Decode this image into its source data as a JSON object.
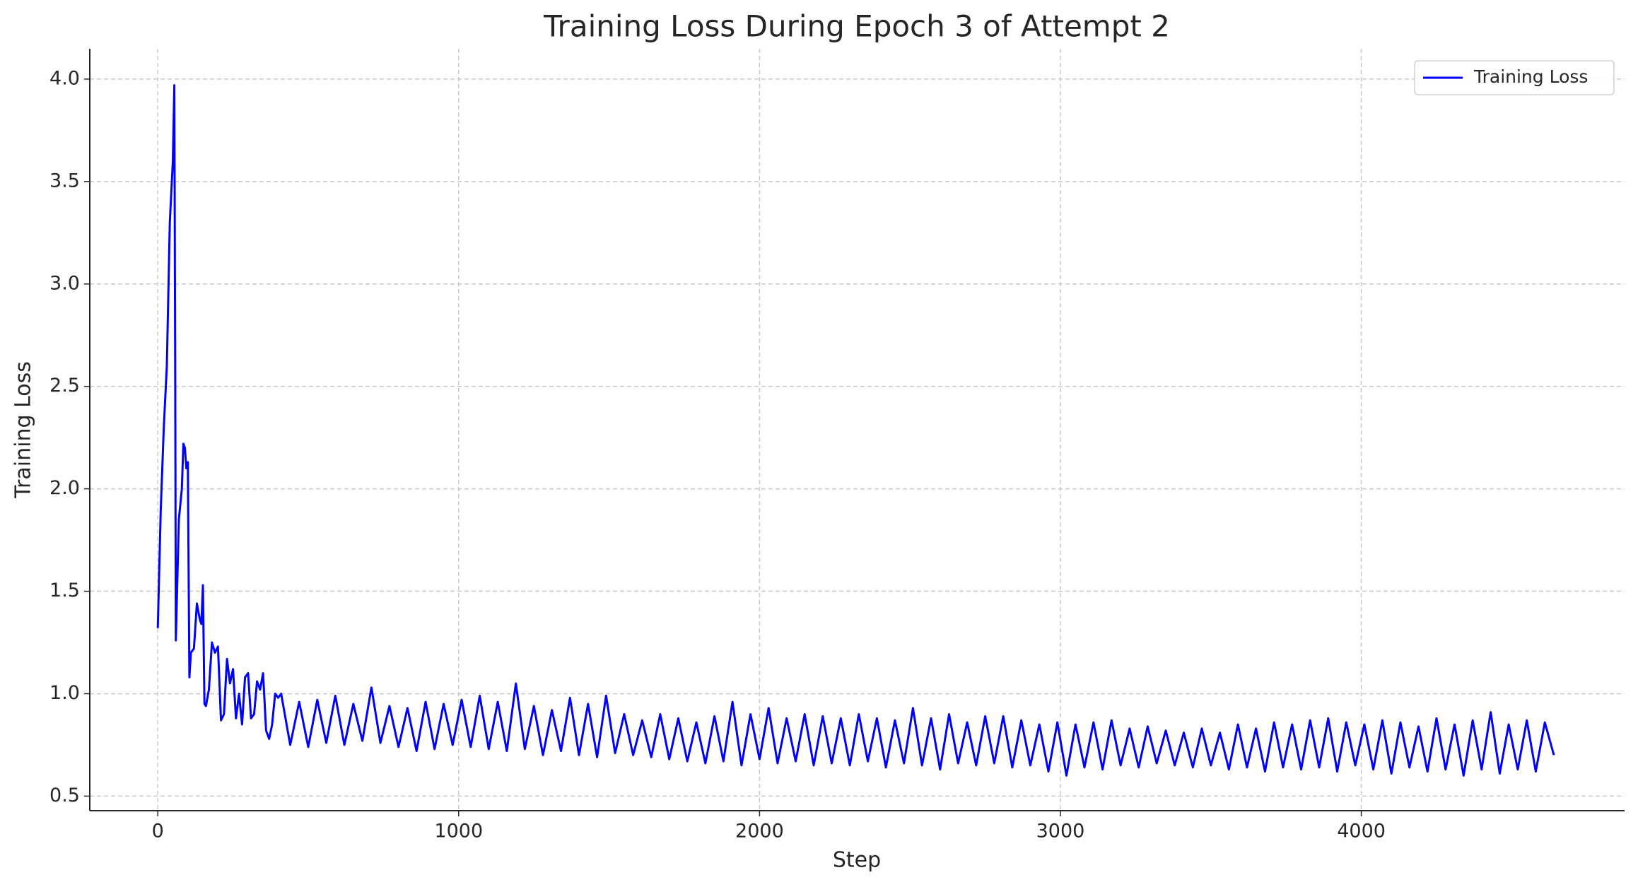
{
  "chart_data": {
    "type": "line",
    "title": "Training Loss During Epoch 3 of Attempt 2",
    "xlabel": "Step",
    "ylabel": "Training Loss",
    "legend": "upper right",
    "grid": true,
    "xlim": [
      -226,
      4875
    ],
    "ylim": [
      0.429,
      4.148
    ],
    "xticks": [
      0,
      1000,
      2000,
      3000,
      4000
    ],
    "yticks": [
      0.5,
      {
        "value": 1,
        "label": "1.0"
      },
      1.5,
      {
        "value": 2,
        "label": "2.0"
      },
      2.5,
      {
        "value": 3,
        "label": "3.0"
      },
      3.5,
      {
        "value": 4,
        "label": "4.0"
      }
    ],
    "x": [
      0,
      10,
      20,
      30,
      40,
      50,
      55,
      58,
      60,
      70,
      80,
      85,
      90,
      95,
      100,
      105,
      110,
      120,
      130,
      140,
      145,
      150,
      155,
      160,
      170,
      180,
      190,
      200,
      210,
      220,
      230,
      240,
      250,
      260,
      270,
      280,
      290,
      300,
      310,
      320,
      330,
      340,
      350,
      360,
      370,
      380,
      390,
      400,
      410,
      440,
      470,
      500,
      530,
      560,
      590,
      620,
      650,
      680,
      710,
      740,
      770,
      800,
      830,
      860,
      890,
      920,
      950,
      980,
      1010,
      1040,
      1070,
      1100,
      1130,
      1160,
      1190,
      1220,
      1250,
      1280,
      1310,
      1340,
      1370,
      1400,
      1430,
      1460,
      1490,
      1520,
      1550,
      1580,
      1610,
      1640,
      1670,
      1700,
      1730,
      1760,
      1790,
      1820,
      1850,
      1880,
      1910,
      1940,
      1970,
      2000,
      2030,
      2060,
      2090,
      2120,
      2150,
      2180,
      2210,
      2240,
      2270,
      2300,
      2330,
      2360,
      2390,
      2420,
      2450,
      2480,
      2510,
      2540,
      2570,
      2600,
      2630,
      2660,
      2690,
      2720,
      2750,
      2780,
      2810,
      2840,
      2870,
      2900,
      2930,
      2960,
      2990,
      3020,
      3050,
      3080,
      3110,
      3140,
      3170,
      3200,
      3230,
      3260,
      3290,
      3320,
      3350,
      3380,
      3410,
      3440,
      3470,
      3500,
      3530,
      3560,
      3590,
      3620,
      3650,
      3680,
      3710,
      3740,
      3770,
      3800,
      3830,
      3860,
      3890,
      3920,
      3950,
      3980,
      4010,
      4040,
      4070,
      4100,
      4130,
      4160,
      4190,
      4220,
      4250,
      4280,
      4310,
      4340,
      4370,
      4400,
      4430,
      4460,
      4490,
      4520,
      4550,
      4580,
      4610,
      4640
    ],
    "series": [
      {
        "name": "Training Loss",
        "color": "#0000ff",
        "values": [
          1.32,
          1.9,
          2.3,
          2.6,
          3.3,
          3.6,
          3.97,
          2.5,
          1.26,
          1.85,
          2.0,
          2.22,
          2.2,
          2.1,
          2.13,
          1.08,
          1.2,
          1.22,
          1.44,
          1.36,
          1.34,
          1.53,
          0.95,
          0.94,
          1.02,
          1.25,
          1.2,
          1.23,
          0.87,
          0.9,
          1.17,
          1.05,
          1.12,
          0.88,
          1.0,
          0.85,
          1.08,
          1.1,
          0.88,
          0.9,
          1.06,
          1.02,
          1.1,
          0.82,
          0.78,
          0.85,
          1.0,
          0.98,
          1.0,
          0.75,
          0.96,
          0.74,
          0.97,
          0.76,
          0.99,
          0.75,
          0.95,
          0.77,
          1.03,
          0.76,
          0.94,
          0.74,
          0.93,
          0.72,
          0.96,
          0.73,
          0.95,
          0.75,
          0.97,
          0.74,
          0.99,
          0.73,
          0.96,
          0.72,
          1.05,
          0.73,
          0.94,
          0.7,
          0.92,
          0.72,
          0.98,
          0.7,
          0.95,
          0.69,
          0.99,
          0.71,
          0.9,
          0.7,
          0.87,
          0.69,
          0.9,
          0.68,
          0.88,
          0.67,
          0.86,
          0.66,
          0.89,
          0.67,
          0.96,
          0.65,
          0.9,
          0.68,
          0.93,
          0.66,
          0.88,
          0.67,
          0.9,
          0.65,
          0.89,
          0.66,
          0.88,
          0.65,
          0.9,
          0.67,
          0.88,
          0.64,
          0.87,
          0.66,
          0.93,
          0.65,
          0.88,
          0.63,
          0.9,
          0.66,
          0.86,
          0.65,
          0.89,
          0.66,
          0.89,
          0.64,
          0.87,
          0.65,
          0.85,
          0.62,
          0.86,
          0.6,
          0.85,
          0.64,
          0.86,
          0.63,
          0.87,
          0.65,
          0.83,
          0.64,
          0.84,
          0.66,
          0.82,
          0.65,
          0.81,
          0.64,
          0.83,
          0.65,
          0.81,
          0.63,
          0.85,
          0.64,
          0.83,
          0.62,
          0.86,
          0.64,
          0.85,
          0.63,
          0.87,
          0.64,
          0.88,
          0.62,
          0.86,
          0.65,
          0.85,
          0.63,
          0.87,
          0.61,
          0.86,
          0.64,
          0.84,
          0.62,
          0.88,
          0.63,
          0.85,
          0.6,
          0.87,
          0.63,
          0.91,
          0.61,
          0.85,
          0.63,
          0.87,
          0.62,
          0.86,
          0.7
        ]
      }
    ]
  }
}
